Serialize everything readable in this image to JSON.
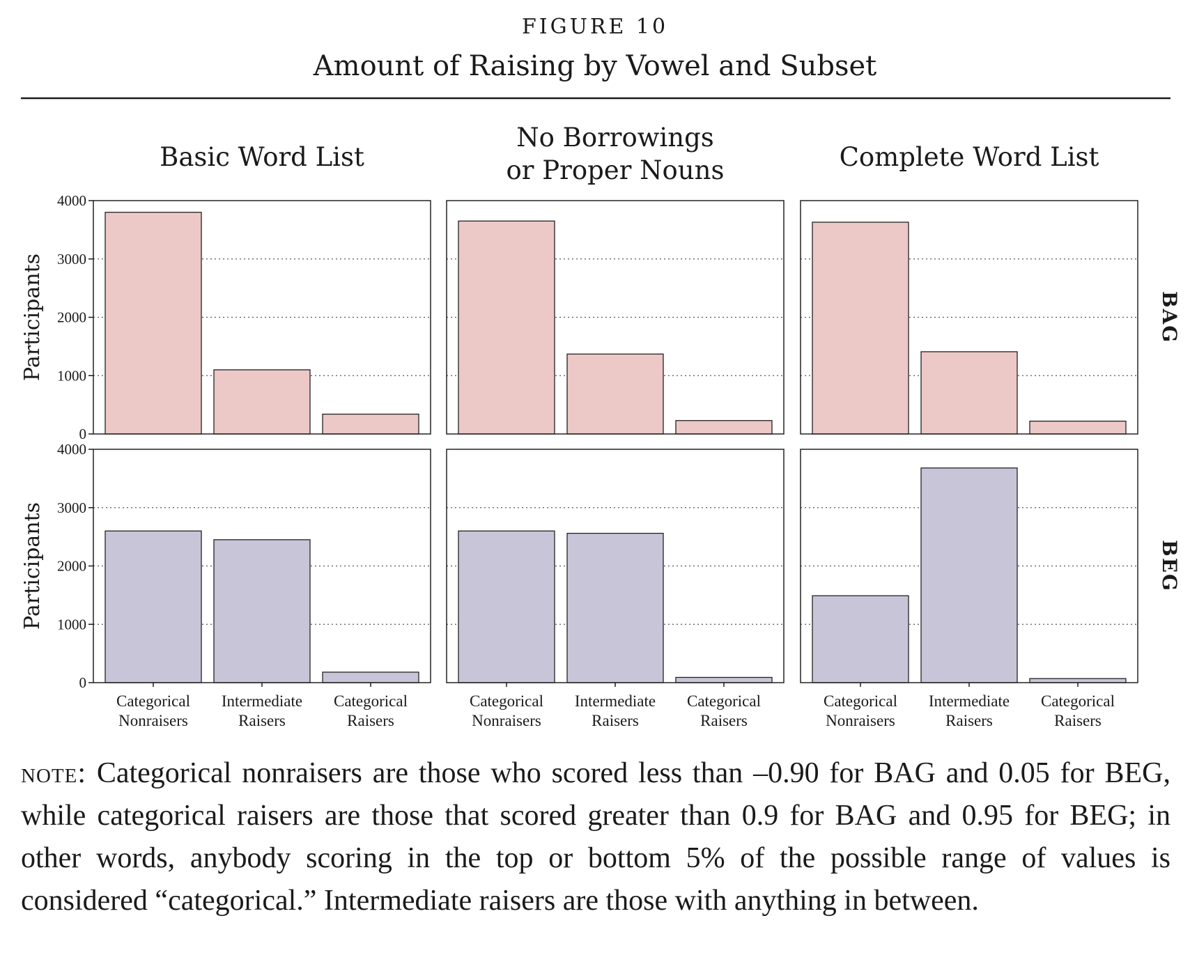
{
  "figure": {
    "label": "FIGURE 10",
    "title": "Amount of Raising by Vowel and Subset"
  },
  "chart_data": {
    "type": "bar",
    "panel_titles": [
      "Basic Word List",
      "No Borrowings or Proper Nouns",
      "Complete Word List"
    ],
    "panel_title_lines": [
      [
        "Basic Word List"
      ],
      [
        "No Borrowings",
        "or Proper Nouns"
      ],
      [
        "Complete Word List"
      ]
    ],
    "row_labels": [
      "BAG",
      "BEG"
    ],
    "categories": [
      "Categorical Nonraisers",
      "Intermediate Raisers",
      "Categorical Raisers"
    ],
    "category_lines": [
      [
        "Categorical",
        "Nonraisers"
      ],
      [
        "Intermediate",
        "Raisers"
      ],
      [
        "Categorical",
        "Raisers"
      ]
    ],
    "ylabel": "Participants",
    "ylim": [
      0,
      4000
    ],
    "yticks": [
      0,
      1000,
      2000,
      3000,
      4000
    ],
    "grid": "dotted horizontal",
    "colors": {
      "BAG": "#ecc8c6",
      "BEG": "#c9c5d8"
    },
    "values": {
      "BAG": [
        [
          3800,
          1100,
          340
        ],
        [
          3650,
          1370,
          230
        ],
        [
          3630,
          1410,
          220
        ]
      ],
      "BEG": [
        [
          2600,
          2450,
          180
        ],
        [
          2600,
          2560,
          90
        ],
        [
          1490,
          3680,
          70
        ]
      ]
    }
  },
  "note": {
    "lead": "note:",
    "text": "Categorical nonraisers are those who scored less than –0.90 for BAG and 0.05 for BEG, while categorical raisers are those that scored greater than 0.9 for BAG and 0.95 for BEG; in other words, anybody scoring in the top or bottom 5% of the possible range of values is considered “categorical.” Intermediate raisers are those with anything in between."
  }
}
